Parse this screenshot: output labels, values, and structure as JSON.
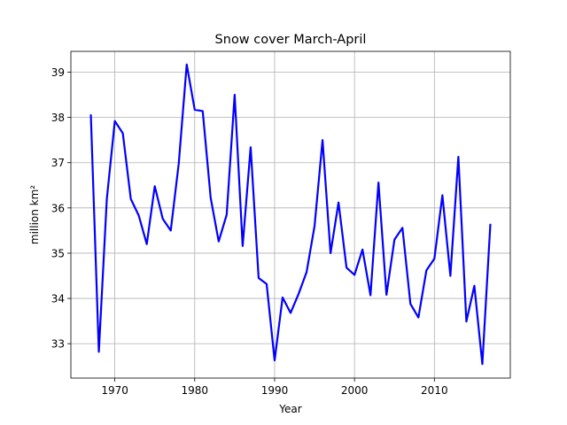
{
  "chart_data": {
    "type": "line",
    "title": "Snow cover March-April",
    "xlabel": "Year",
    "ylabel": "million km²",
    "xlim": [
      1964.5,
      2019.5
    ],
    "ylim": [
      32.24,
      39.46
    ],
    "xticks": [
      1970,
      1980,
      1990,
      2000,
      2010
    ],
    "yticks": [
      33,
      34,
      35,
      36,
      37,
      38,
      39
    ],
    "grid": true,
    "legend": "none",
    "series": [
      {
        "color": "#0000ff",
        "x": [
          1967,
          1968,
          1969,
          1970,
          1971,
          1972,
          1973,
          1974,
          1975,
          1976,
          1977,
          1978,
          1979,
          1980,
          1981,
          1982,
          1983,
          1984,
          1985,
          1986,
          1987,
          1988,
          1989,
          1990,
          1991,
          1992,
          1993,
          1994,
          1995,
          1996,
          1997,
          1998,
          1999,
          2000,
          2001,
          2002,
          2003,
          2004,
          2005,
          2006,
          2007,
          2008,
          2009,
          2010,
          2011,
          2012,
          2013,
          2014,
          2015,
          2016,
          2017
        ],
        "y": [
          38.05,
          32.82,
          36.2,
          37.92,
          37.65,
          36.2,
          35.83,
          35.2,
          36.48,
          35.76,
          35.5,
          36.98,
          39.17,
          38.17,
          38.14,
          36.22,
          35.26,
          35.85,
          38.5,
          35.16,
          37.34,
          34.45,
          34.32,
          32.63,
          34.02,
          33.68,
          34.1,
          34.58,
          35.6,
          37.5,
          35.0,
          36.12,
          34.68,
          34.52,
          35.08,
          34.07,
          36.56,
          34.08,
          35.3,
          35.56,
          33.88,
          33.58,
          34.62,
          34.88,
          36.28,
          34.5,
          37.13,
          33.49,
          34.28,
          32.55,
          35.63
        ]
      }
    ]
  }
}
